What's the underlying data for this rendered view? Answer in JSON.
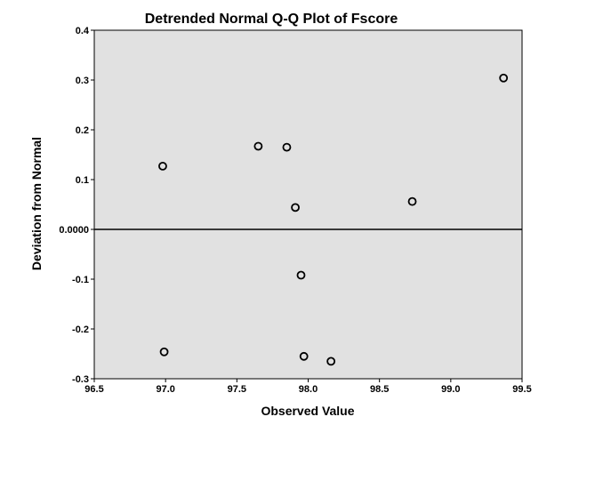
{
  "chart_data": {
    "type": "scatter",
    "title": "Detrended Normal Q-Q Plot of Fscore",
    "xlabel": "Observed Value",
    "ylabel": "Deviation from Normal",
    "xlim": [
      96.5,
      99.5
    ],
    "ylim": [
      -0.3,
      0.4
    ],
    "xticks": [
      96.5,
      97.0,
      97.5,
      98.0,
      98.5,
      99.0,
      99.5
    ],
    "xtick_labels": [
      "96.5",
      "97.0",
      "97.5",
      "98.0",
      "98.5",
      "99.0",
      "99.5"
    ],
    "yticks": [
      -0.3,
      -0.2,
      -0.1,
      0.0,
      0.1,
      0.2,
      0.3,
      0.4
    ],
    "ytick_labels": [
      "-0.3",
      "-0.2",
      "-0.1",
      "0.0000",
      "0.1",
      "0.2",
      "0.3",
      "0.4"
    ],
    "reference_line_y": 0.0,
    "grid": false,
    "points": [
      {
        "x": 96.98,
        "y": 0.127
      },
      {
        "x": 96.99,
        "y": -0.246
      },
      {
        "x": 97.65,
        "y": 0.167
      },
      {
        "x": 97.85,
        "y": 0.165
      },
      {
        "x": 97.91,
        "y": 0.044
      },
      {
        "x": 97.95,
        "y": -0.092
      },
      {
        "x": 97.97,
        "y": -0.255
      },
      {
        "x": 98.16,
        "y": -0.265
      },
      {
        "x": 98.73,
        "y": 0.056
      },
      {
        "x": 99.37,
        "y": 0.304
      }
    ],
    "colors": {
      "plot_background": "#e1e1e1",
      "marker_stroke": "#000000",
      "reference_line": "#000000"
    }
  }
}
